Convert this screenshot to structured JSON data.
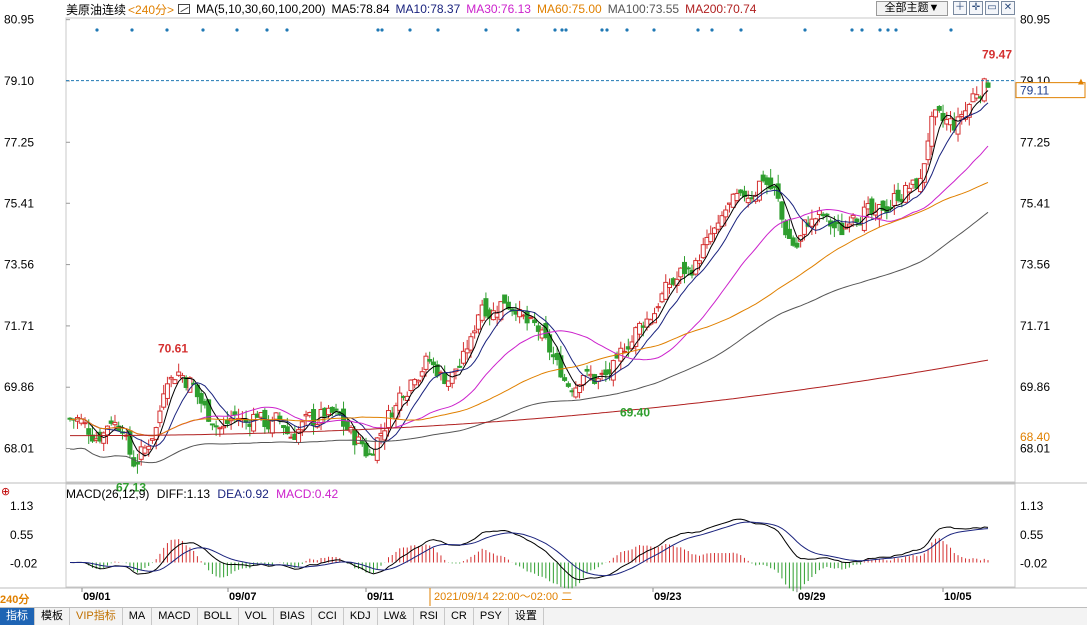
{
  "header": {
    "instrument": "美原油连续",
    "period": "<240分>",
    "ma_params": "MA(5,10,30,60,100,200)",
    "ma5": "MA5:78.84",
    "ma10": "MA10:78.37",
    "ma30": "MA30:76.13",
    "ma60": "MA60:75.00",
    "ma100": "MA100:73.55",
    "ma200": "MA200:70.74",
    "theme_button": "全部主题▼",
    "tool_icons": [
      "zoom-icon",
      "crosshair-icon",
      "restore-icon",
      "close-icon"
    ]
  },
  "colors": {
    "up": "#d43030",
    "down": "#2e9e2e",
    "ma5": "#000000",
    "ma10": "#1a237e",
    "ma30": "#cc22cc",
    "ma60": "#e08000",
    "ma100": "#555555",
    "ma200": "#b02020",
    "dif": "#000000",
    "dea": "#1a237e",
    "macd": "#cc22cc",
    "price_line": "#1f78b4"
  },
  "price_axis": {
    "ticks": [
      "80.95",
      "79.10",
      "77.25",
      "75.41",
      "73.56",
      "71.71",
      "69.86",
      "68.01"
    ],
    "right_ticks": [
      "80.95",
      "79.10",
      "77.25",
      "75.41",
      "73.56",
      "71.71",
      "69.86",
      "68.01"
    ],
    "current_price": "79.11",
    "ma60_label": "68.40"
  },
  "annotations": {
    "high": "79.47",
    "mid_high": "70.61",
    "low": "67.13",
    "mid_low": "69.40"
  },
  "macd_panel": {
    "params": "MACD(26,12,9)",
    "diff": "DIFF:1.13",
    "dea": "DEA:0.92",
    "macd": "MACD:0.42",
    "ticks": [
      "1.13",
      "0.55",
      "-0.02"
    ],
    "right_ticks": [
      "1.13",
      "0.55",
      "-0.02"
    ]
  },
  "x_axis": {
    "dates": [
      "09/01",
      "09/07",
      "09/11",
      "09/23",
      "09/29",
      "10/05"
    ],
    "cursor_time": "2021/09/14 22:00～02:00 二"
  },
  "bottom": {
    "period_label": "240分",
    "tabs": [
      "指标",
      "模板",
      "VIP指标",
      "MA",
      "MACD",
      "BOLL",
      "VOL",
      "BIAS",
      "CCI",
      "KDJ",
      "LW&",
      "RSI",
      "CR",
      "PSY",
      "设置"
    ]
  },
  "chart_data": {
    "type": "candlestick",
    "title": "美原油连续 240分",
    "ylim": [
      67.0,
      81.0
    ],
    "close_path": [
      68.9,
      68.6,
      68.4,
      68.9,
      68.7,
      67.6,
      68.0,
      68.6,
      70.2,
      70.3,
      70.0,
      69.4,
      68.9,
      68.6,
      69.0,
      68.8,
      69.1,
      68.7,
      68.9,
      68.4,
      68.7,
      68.9,
      69.1,
      69.0,
      68.6,
      68.2,
      67.8,
      68.5,
      69.2,
      69.8,
      70.3,
      70.6,
      70.4,
      70.1,
      70.5,
      71.2,
      72.4,
      72.1,
      72.5,
      72.3,
      71.8,
      71.6,
      71.0,
      70.4,
      69.9,
      70.3,
      70.1,
      70.2,
      70.5,
      71.2,
      71.7,
      72.0,
      72.6,
      73.0,
      73.4,
      73.5,
      74.2,
      74.6,
      75.3,
      75.5,
      75.7,
      76.2,
      75.8,
      74.6,
      74.1,
      74.9,
      75.0,
      74.8,
      74.6,
      75.2,
      75.1,
      74.9,
      75.3,
      75.7,
      75.9,
      76.0,
      77.8,
      77.9,
      77.8,
      78.2,
      78.8,
      79.1
    ],
    "ma5": "MA5:78.84",
    "ma10": "MA10:78.37",
    "ma30": "MA30:76.13",
    "ma60": "MA60:75.00",
    "ma100": "MA100:73.55",
    "ma200": "MA200:70.74"
  }
}
